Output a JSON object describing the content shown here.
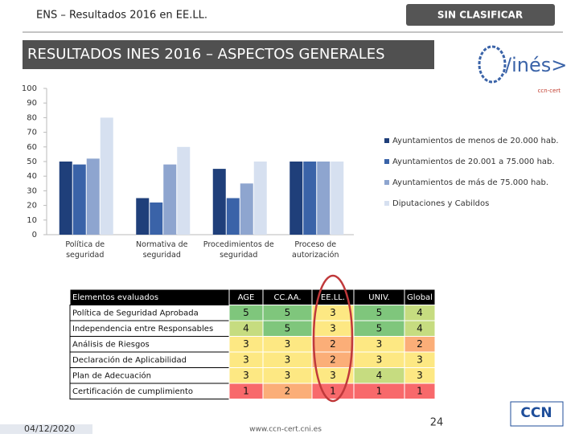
{
  "header": {
    "left": "ENS – Resultados 2016 en EE.LL.",
    "right": "SIN CLASIFICAR"
  },
  "title": "RESULTADOS INES 2016 – ASPECTOS GENERALES",
  "logo": {
    "text": "/inés>",
    "sub": "ccn-cert"
  },
  "chart_data": {
    "type": "bar",
    "categories": [
      "Política de seguridad",
      "Normativa de seguridad",
      "Procedimientos de seguridad",
      "Proceso de autorización"
    ],
    "series": [
      {
        "name": "Ayuntamientos de menos de 20.000 hab.",
        "color": "#1f3f7a",
        "values": [
          50,
          25,
          45,
          50
        ]
      },
      {
        "name": "Ayuntamientos de 20.001 a 75.000 hab.",
        "color": "#3a63a8",
        "values": [
          48,
          22,
          25,
          50
        ]
      },
      {
        "name": "Ayuntamientos de más de 75.000 hab.",
        "color": "#8ea5cf",
        "values": [
          52,
          48,
          35,
          50
        ]
      },
      {
        "name": "Diputaciones y Cabildos",
        "color": "#d6e0f0",
        "values": [
          80,
          60,
          50,
          50
        ]
      }
    ],
    "ylim": [
      0,
      100
    ],
    "yticks": [
      0,
      10,
      20,
      30,
      40,
      50,
      60,
      70,
      80,
      90,
      100
    ],
    "legend": "right"
  },
  "table": {
    "header": [
      "Elementos evaluados",
      "AGE",
      "CC.AA.",
      "EE.LL.",
      "UNIV.",
      "Global"
    ],
    "rows": [
      [
        "Política de Seguridad Aprobada",
        5,
        5,
        3,
        5,
        4
      ],
      [
        "Independencia entre Responsables",
        4,
        5,
        3,
        5,
        4
      ],
      [
        "Análisis de Riesgos",
        3,
        3,
        2,
        3,
        2
      ],
      [
        "Declaración de Aplicabilidad",
        3,
        3,
        2,
        3,
        3
      ],
      [
        "Plan de Adecuación",
        3,
        3,
        3,
        4,
        3
      ],
      [
        "Certificación de cumplimiento",
        1,
        2,
        1,
        1,
        1
      ]
    ],
    "scale_colors": [
      "#f8696b",
      "#fbae78",
      "#fde883",
      "#c6dc80",
      "#7fc67c"
    ]
  },
  "footer": {
    "date": "04/12/2020",
    "url": "www.ccn-cert.cni.es",
    "page": "24",
    "brand": "CCN"
  }
}
